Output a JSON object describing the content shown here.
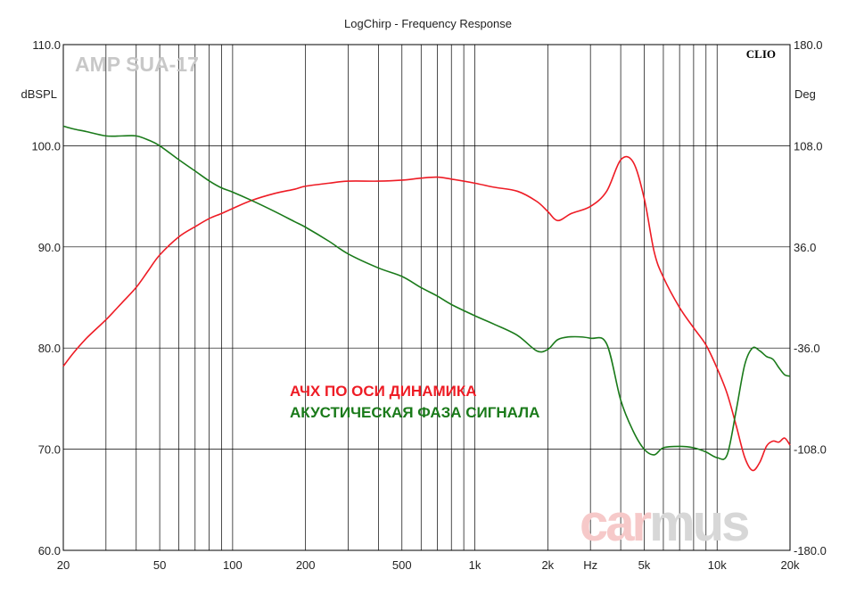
{
  "chart_data": {
    "type": "line",
    "title": "LogChirp - Frequency Response",
    "brand_label": "CLIO",
    "watermark_top": "AMP SUA-17",
    "watermark_bottom": [
      "car",
      "mus"
    ],
    "x_scale": "log",
    "xlim": [
      20,
      20000
    ],
    "x_unit_label": "Hz",
    "x_ticks": [
      {
        "value": 20,
        "label": "20"
      },
      {
        "value": 50,
        "label": "50"
      },
      {
        "value": 100,
        "label": "100"
      },
      {
        "value": 200,
        "label": "200"
      },
      {
        "value": 500,
        "label": "500"
      },
      {
        "value": 1000,
        "label": "1k"
      },
      {
        "value": 2000,
        "label": "2k"
      },
      {
        "value": 5000,
        "label": "5k"
      },
      {
        "value": 10000,
        "label": "10k"
      },
      {
        "value": 20000,
        "label": "20k"
      }
    ],
    "y_left": {
      "label": "dBSPL",
      "lim": [
        60,
        110
      ],
      "ticks": [
        "60.0",
        "70.0",
        "80.0",
        "90.0",
        "100.0",
        "110.0"
      ]
    },
    "y_right": {
      "label": "Deg",
      "lim": [
        -180,
        180
      ],
      "ticks": [
        "-180.0",
        "-108.0",
        "-36.0",
        "36.0",
        "108.0",
        "180.0"
      ]
    },
    "grid": true,
    "legend_position": "center",
    "series": [
      {
        "name": "АЧХ ПО ОСИ ДИНАМИКА",
        "axis": "left",
        "color": "#ee1c25",
        "x": [
          20,
          22,
          25,
          30,
          35,
          40,
          45,
          50,
          60,
          70,
          80,
          90,
          100,
          120,
          150,
          180,
          200,
          250,
          300,
          400,
          500,
          600,
          700,
          800,
          1000,
          1200,
          1500,
          1800,
          2000,
          2200,
          2500,
          3000,
          3500,
          4000,
          4500,
          5000,
          5500,
          6000,
          7000,
          8000,
          9000,
          10000,
          11000,
          12000,
          13000,
          14000,
          15000,
          16000,
          17000,
          18000,
          19000,
          20000
        ],
        "y": [
          78.2,
          79.5,
          81.0,
          82.8,
          84.5,
          86.0,
          87.7,
          89.2,
          91.0,
          92.0,
          92.8,
          93.3,
          93.8,
          94.6,
          95.3,
          95.7,
          96.0,
          96.3,
          96.5,
          96.5,
          96.6,
          96.8,
          96.9,
          96.7,
          96.3,
          95.9,
          95.5,
          94.5,
          93.5,
          92.6,
          93.3,
          94.0,
          95.5,
          98.6,
          98.4,
          94.8,
          89.5,
          87.0,
          84.0,
          82.0,
          80.3,
          78.0,
          75.5,
          72.3,
          69.2,
          67.9,
          68.7,
          70.3,
          70.8,
          70.7,
          71.1,
          70.4
        ]
      },
      {
        "name": "АКУСТИЧЕСКАЯ ФАЗА СИГНАЛА",
        "axis": "right",
        "color": "#1a7a1a",
        "x": [
          20,
          22,
          25,
          30,
          35,
          40,
          45,
          50,
          60,
          70,
          80,
          90,
          100,
          120,
          150,
          180,
          200,
          250,
          300,
          400,
          500,
          600,
          700,
          800,
          1000,
          1200,
          1500,
          1800,
          2000,
          2200,
          2500,
          3000,
          3500,
          4000,
          4500,
          5000,
          5500,
          6000,
          7000,
          8000,
          9000,
          10000,
          11000,
          12000,
          13000,
          14000,
          15000,
          16000,
          17000,
          18000,
          19000,
          20000
        ],
        "y": [
          122,
          120,
          118,
          115,
          115,
          115,
          112,
          108,
          98,
          90,
          83,
          78,
          75,
          69,
          61,
          54,
          50,
          40,
          31,
          21,
          15,
          7,
          1,
          -5,
          -13,
          -19,
          -27,
          -38,
          -37,
          -30,
          -28,
          -29,
          -33,
          -73,
          -95,
          -108,
          -112,
          -107,
          -106,
          -107,
          -110,
          -114,
          -112,
          -80,
          -48,
          -36,
          -38,
          -42,
          -44,
          -50,
          -55,
          -56
        ]
      }
    ]
  }
}
